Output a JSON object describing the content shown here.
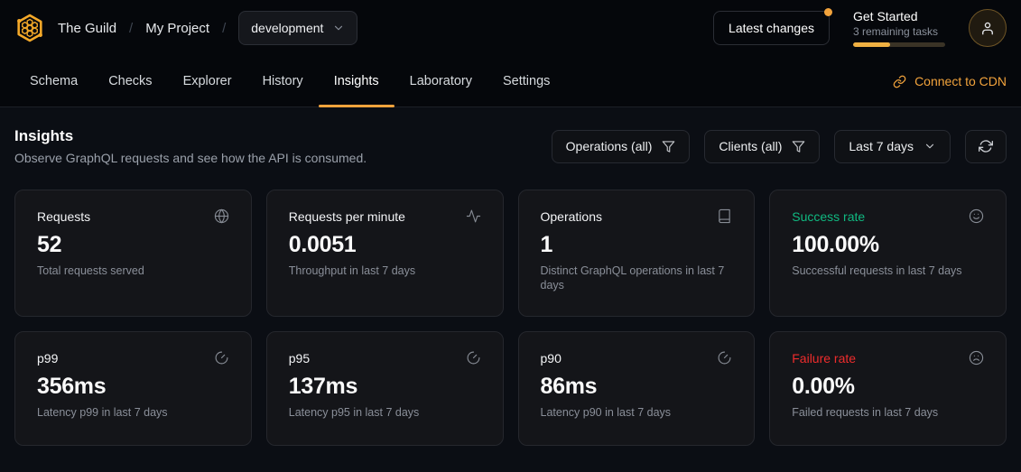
{
  "topbar": {
    "org": "The Guild",
    "project": "My Project",
    "target_selector": "development",
    "latest_changes_label": "Latest changes",
    "get_started": {
      "title": "Get Started",
      "subtitle": "3 remaining tasks",
      "progress_percent": 40
    }
  },
  "nav": {
    "tabs": [
      "Schema",
      "Checks",
      "Explorer",
      "History",
      "Insights",
      "Laboratory",
      "Settings"
    ],
    "active_tab": "Insights",
    "cdn_link_label": "Connect to CDN"
  },
  "page": {
    "title": "Insights",
    "description": "Observe GraphQL requests and see how the API is consumed.",
    "filters": {
      "operations_label": "Operations (all)",
      "clients_label": "Clients (all)",
      "period_label": "Last 7 days"
    }
  },
  "cards": [
    {
      "label": "Requests",
      "value": "52",
      "description": "Total requests served",
      "icon": "globe-icon"
    },
    {
      "label": "Requests per minute",
      "value": "0.0051",
      "description": "Throughput in last 7 days",
      "icon": "activity-icon"
    },
    {
      "label": "Operations",
      "value": "1",
      "description": "Distinct GraphQL operations in last 7 days",
      "icon": "book-icon"
    },
    {
      "label": "Success rate",
      "value": "100.00%",
      "description": "Successful requests in last 7 days",
      "icon": "smile-icon"
    },
    {
      "label": "p99",
      "value": "356ms",
      "description": "Latency p99 in last 7 days",
      "icon": "gauge-icon"
    },
    {
      "label": "p95",
      "value": "137ms",
      "description": "Latency p95 in last 7 days",
      "icon": "gauge-icon"
    },
    {
      "label": "p90",
      "value": "86ms",
      "description": "Latency p90 in last 7 days",
      "icon": "gauge-icon"
    },
    {
      "label": "Failure rate",
      "value": "0.00%",
      "description": "Failed requests in last 7 days",
      "icon": "frown-icon"
    }
  ],
  "colors": {
    "accent": "#f2a33c",
    "logo_gold": "#f5a929",
    "success": "#10b981",
    "danger": "#ee2c2c"
  }
}
